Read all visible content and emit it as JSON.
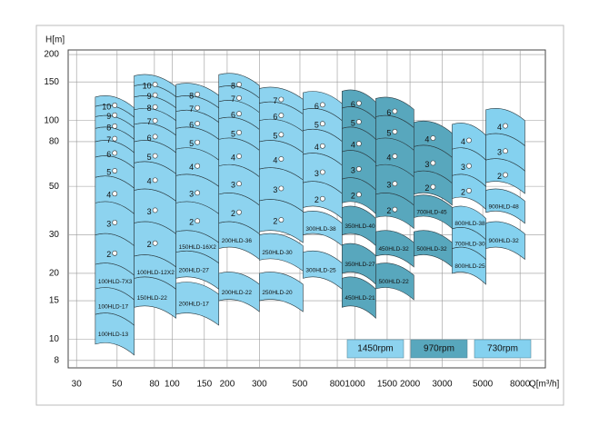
{
  "chart_data": {
    "type": "range-tiles",
    "y_label": "H[m]",
    "x_label": "Q[m³/h]",
    "xscale": "log",
    "yscale": "log",
    "grid": true,
    "xlim": [
      27,
      11000
    ],
    "ylim": [
      7.4,
      210
    ],
    "xticks": [
      30,
      50,
      80,
      100,
      150,
      200,
      300,
      500,
      800,
      1000,
      1500,
      2000,
      3000,
      5000,
      8000
    ],
    "yticks": [
      8,
      10,
      15,
      20,
      30,
      50,
      80,
      100,
      150,
      200
    ],
    "groups": [
      {
        "name": "1450rpm",
        "color": "#8dd3ef",
        "columns": [
          {
            "q": [
              38,
              62
            ],
            "tiles": [
              {
                "label": "100HLD-13",
                "h": [
                  9.5,
                  13
                ]
              },
              {
                "label": "100HLD-17",
                "h": [
                  13,
                  17
                ]
              },
              {
                "label": "100HLD-7X3",
                "h": [
                  17,
                  22
                ]
              },
              {
                "label": "2",
                "h": [
                  22,
                  30
                ]
              },
              {
                "label": "3",
                "h": [
                  30,
                  42
                ]
              },
              {
                "label": "4",
                "h": [
                  42,
                  55
                ]
              },
              {
                "label": "5",
                "h": [
                  55,
                  68
                ]
              },
              {
                "label": "6",
                "h": [
                  68,
                  80
                ]
              },
              {
                "label": "7",
                "h": [
                  80,
                  92
                ]
              },
              {
                "label": "8",
                "h": [
                  92,
                  104
                ]
              },
              {
                "label": "9",
                "h": [
                  104,
                  116
                ]
              },
              {
                "label": "10",
                "h": [
                  116,
                  128
                ]
              }
            ]
          },
          {
            "q": [
              62,
              105
            ],
            "tiles": [
              {
                "label": "150HLD-22",
                "h": [
                  14,
                  19
                ]
              },
              {
                "label": "100HLD-12X2",
                "h": [
                  19,
                  24
                ]
              },
              {
                "label": "2",
                "h": [
                  24,
                  34
                ]
              },
              {
                "label": "3",
                "h": [
                  34,
                  48
                ]
              },
              {
                "label": "4",
                "h": [
                  48,
                  64
                ]
              },
              {
                "label": "5",
                "h": [
                  64,
                  80
                ]
              },
              {
                "label": "6",
                "h": [
                  80,
                  96
                ]
              },
              {
                "label": "7",
                "h": [
                  96,
                  112
                ]
              },
              {
                "label": "8",
                "h": [
                  112,
                  128
                ]
              },
              {
                "label": "9",
                "h": [
                  128,
                  144
                ]
              },
              {
                "label": "10",
                "h": [
                  144,
                  160
                ]
              }
            ]
          },
          {
            "q": [
              105,
              180
            ],
            "tiles": [
              {
                "label": "200HLD-17",
                "h": [
                  13,
                  18
                ]
              },
              {
                "label": "200HLD-27",
                "h": [
                  19,
                  25
                ]
              },
              {
                "label": "150HLD-16X2",
                "h": [
                  25,
                  31
                ]
              },
              {
                "label": "2",
                "h": [
                  31,
                  42
                ]
              },
              {
                "label": "3",
                "h": [
                  42,
                  56
                ]
              },
              {
                "label": "4",
                "h": [
                  56,
                  74
                ]
              },
              {
                "label": "5",
                "h": [
                  74,
                  92
                ]
              },
              {
                "label": "6",
                "h": [
                  92,
                  110
                ]
              },
              {
                "label": "7",
                "h": [
                  110,
                  128
                ]
              },
              {
                "label": "8",
                "h": [
                  128,
                  146
                ]
              }
            ]
          },
          {
            "q": [
              180,
              300
            ],
            "tiles": [
              {
                "label": "200HLD-22",
                "h": [
                  15,
                  20
                ]
              },
              {
                "label": "200HLD-36",
                "h": [
                  26,
                  34
                ]
              },
              {
                "label": "2",
                "h": [
                  34,
                  46
                ]
              },
              {
                "label": "3",
                "h": [
                  46,
                  62
                ]
              },
              {
                "label": "4",
                "h": [
                  62,
                  82
                ]
              },
              {
                "label": "5",
                "h": [
                  82,
                  102
                ]
              },
              {
                "label": "6",
                "h": [
                  102,
                  122
                ]
              },
              {
                "label": "7",
                "h": [
                  122,
                  142
                ]
              },
              {
                "label": "8",
                "h": [
                  142,
                  162
                ]
              }
            ]
          },
          {
            "q": [
              300,
              520
            ],
            "tiles": [
              {
                "label": "250HLD-20",
                "h": [
                  15,
                  20
                ]
              },
              {
                "label": "250HLD-30",
                "h": [
                  23,
                  30
                ]
              },
              {
                "label": "2",
                "h": [
                  31,
                  43
                ]
              },
              {
                "label": "3",
                "h": [
                  43,
                  60
                ]
              },
              {
                "label": "4",
                "h": [
                  60,
                  80
                ]
              },
              {
                "label": "5",
                "h": [
                  80,
                  100
                ]
              },
              {
                "label": "6",
                "h": [
                  100,
                  120
                ]
              },
              {
                "label": "7",
                "h": [
                  120,
                  140
                ]
              }
            ]
          },
          {
            "q": [
              520,
              850
            ],
            "tiles": [
              {
                "label": "300HLD-25",
                "h": [
                  19,
                  25
                ]
              },
              {
                "label": "300HLD-38",
                "h": [
                  30,
                  38
                ]
              },
              {
                "label": "2",
                "h": [
                  40,
                  52
                ]
              },
              {
                "label": "3",
                "h": [
                  52,
                  70
                ]
              },
              {
                "label": "4",
                "h": [
                  70,
                  90
                ]
              },
              {
                "label": "5",
                "h": [
                  90,
                  112
                ]
              },
              {
                "label": "6",
                "h": [
                  112,
                  134
                ]
              }
            ]
          }
        ]
      },
      {
        "name": "970rpm",
        "color": "#58a7bd",
        "columns": [
          {
            "q": [
              850,
              1300
            ],
            "tiles": [
              {
                "label": "450HLD-21",
                "h": [
                  14,
                  19
                ]
              },
              {
                "label": "350HLD-27",
                "h": [
                  20,
                  27
                ]
              },
              {
                "label": "350HLD-40",
                "h": [
                  30,
                  40
                ]
              },
              {
                "label": "2",
                "h": [
                  42,
                  54
                ]
              },
              {
                "label": "3",
                "h": [
                  54,
                  72
                ]
              },
              {
                "label": "4",
                "h": [
                  72,
                  92
                ]
              },
              {
                "label": "5",
                "h": [
                  92,
                  114
                ]
              },
              {
                "label": "6",
                "h": [
                  114,
                  136
                ]
              }
            ]
          },
          {
            "q": [
              1300,
              2100
            ],
            "tiles": [
              {
                "label": "500HLD-22",
                "h": [
                  17,
                  22
                ]
              },
              {
                "label": "450HLD-32",
                "h": [
                  24,
                  31
                ]
              },
              {
                "label": "2",
                "h": [
                  36,
                  46
                ]
              },
              {
                "label": "3",
                "h": [
                  46,
                  62
                ]
              },
              {
                "label": "4",
                "h": [
                  62,
                  82
                ]
              },
              {
                "label": "5",
                "h": [
                  82,
                  104
                ]
              },
              {
                "label": "6",
                "h": [
                  104,
                  126
                ]
              }
            ]
          },
          {
            "q": [
              2100,
              3400
            ],
            "tiles": [
              {
                "label": "500HLD-32",
                "h": [
                  24,
                  31
                ]
              },
              {
                "label": "700HLD-45",
                "h": [
                  36,
                  45
                ]
              },
              {
                "label": "2",
                "h": [
                  46,
                  58
                ]
              },
              {
                "label": "3",
                "h": [
                  58,
                  76
                ]
              },
              {
                "label": "4",
                "h": [
                  76,
                  98
                ]
              }
            ]
          }
        ]
      },
      {
        "name": "730rpm",
        "color": "#84d1ef",
        "columns": [
          {
            "q": [
              3400,
              5200
            ],
            "tiles": [
              {
                "label": "800HLD-25",
                "h": [
                  20,
                  26
                ]
              },
              {
                "label": "700HLD-30",
                "h": [
                  26,
                  32
                ]
              },
              {
                "label": "800HLD-38",
                "h": [
                  32,
                  40
                ]
              },
              {
                "label": "2",
                "h": [
                  44,
                  56
                ]
              },
              {
                "label": "3",
                "h": [
                  56,
                  74
                ]
              },
              {
                "label": "4",
                "h": [
                  74,
                  96
                ]
              }
            ]
          },
          {
            "q": [
              5200,
              8500
            ],
            "tiles": [
              {
                "label": "900HLD-32",
                "h": [
                  26,
                  34
                ]
              },
              {
                "label": "900HLD-48",
                "h": [
                  38,
                  48
                ]
              },
              {
                "label": "2",
                "h": [
                  52,
                  66
                ]
              },
              {
                "label": "3",
                "h": [
                  66,
                  86
                ]
              },
              {
                "label": "4",
                "h": [
                  86,
                  112
                ]
              }
            ]
          }
        ]
      }
    ]
  }
}
